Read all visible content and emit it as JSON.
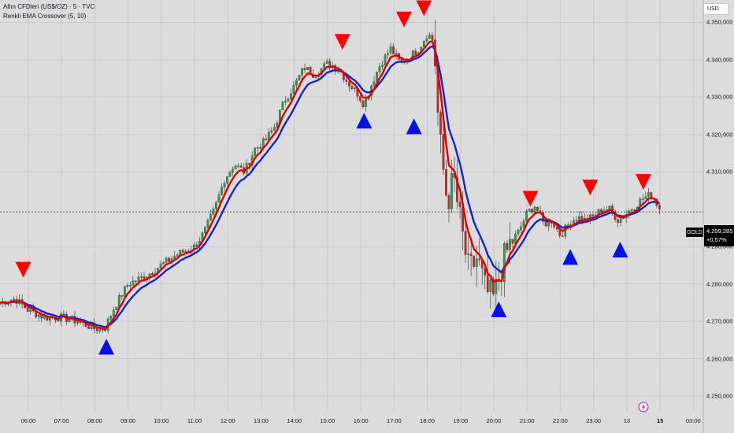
{
  "header": {
    "line1": "Altın CFDleri (US$/OZ) · 5 · TVC",
    "line2": "Renkli EMA Crossover (5, 10)"
  },
  "currency_button": "USD",
  "symbol_tag": "GOLD",
  "last_price": "4.299,285",
  "change_pct": "+0,57%",
  "event_icon": "lightning-icon",
  "colors": {
    "background": "#dcdcdc",
    "grid": "#c9c9c9",
    "up_candle": "#2e9e4e",
    "down_candle": "#c62828",
    "ema_fast": "#d90000",
    "ema_slow": "#1525c8",
    "buy_marker": "#0011e6",
    "sell_marker": "#ff0000"
  },
  "chart_data": {
    "type": "candlestick",
    "title": "Altın CFDleri (US$/OZ) · 5 · TVC",
    "indicator": "Renkli EMA Crossover (5, 10)",
    "y_ticks": [
      "4.350,000",
      "4.340,000",
      "4.330,000",
      "4.320,000",
      "4.310,000",
      "4.290,000",
      "4.280,000",
      "4.270,000",
      "4.260,000",
      "4.250,000"
    ],
    "y_tick_values": [
      4350,
      4340,
      4330,
      4320,
      4310,
      4290,
      4280,
      4270,
      4260,
      4250
    ],
    "ylim": [
      4246,
      4356
    ],
    "x_ticks": [
      "06:00",
      "07:00",
      "08:00",
      "09:00",
      "10:00",
      "11:00",
      "12:00",
      "13:00",
      "14:00",
      "15:00",
      "16:00",
      "17:00",
      "18:00",
      "19:00",
      "20:00",
      "21:00",
      "22:00",
      "23:00",
      "13",
      "15",
      "03:00"
    ],
    "x_tick_hours": [
      6,
      7,
      8,
      9,
      10,
      11,
      12,
      13,
      14,
      15,
      16,
      17,
      18,
      19,
      20,
      21,
      22,
      23,
      24,
      25,
      26
    ],
    "x_tick_bold": [
      "15"
    ],
    "xlim_hours": [
      5.15,
      26.3
    ],
    "grid": true,
    "last_price": 4299.285,
    "close_path": [
      [
        5.15,
        4275
      ],
      [
        5.6,
        4276
      ],
      [
        6.0,
        4273
      ],
      [
        6.5,
        4271
      ],
      [
        7.0,
        4271
      ],
      [
        7.5,
        4270
      ],
      [
        8.0,
        4268
      ],
      [
        8.3,
        4268
      ],
      [
        8.6,
        4274
      ],
      [
        9.0,
        4280
      ],
      [
        9.5,
        4282
      ],
      [
        10.0,
        4285
      ],
      [
        10.5,
        4288
      ],
      [
        11.0,
        4290
      ],
      [
        11.3,
        4294
      ],
      [
        11.6,
        4300
      ],
      [
        11.9,
        4308
      ],
      [
        12.2,
        4312
      ],
      [
        12.5,
        4310
      ],
      [
        12.8,
        4316
      ],
      [
        13.1,
        4318
      ],
      [
        13.4,
        4322
      ],
      [
        13.7,
        4329
      ],
      [
        14.0,
        4333
      ],
      [
        14.3,
        4338
      ],
      [
        14.6,
        4336
      ],
      [
        15.0,
        4339
      ],
      [
        15.3,
        4338
      ],
      [
        15.6,
        4334
      ],
      [
        15.9,
        4331
      ],
      [
        16.1,
        4328
      ],
      [
        16.35,
        4334
      ],
      [
        16.6,
        4339
      ],
      [
        16.9,
        4343
      ],
      [
        17.2,
        4339
      ],
      [
        17.5,
        4341
      ],
      [
        17.75,
        4343
      ],
      [
        18.0,
        4347
      ],
      [
        18.2,
        4345
      ],
      [
        18.35,
        4320
      ],
      [
        18.6,
        4302
      ],
      [
        18.8,
        4308
      ],
      [
        19.0,
        4296
      ],
      [
        19.25,
        4283
      ],
      [
        19.5,
        4287
      ],
      [
        19.75,
        4278
      ],
      [
        20.0,
        4276
      ],
      [
        20.25,
        4285
      ],
      [
        20.5,
        4291
      ],
      [
        20.75,
        4294
      ],
      [
        21.0,
        4299
      ],
      [
        21.25,
        4301
      ],
      [
        21.5,
        4296
      ],
      [
        21.75,
        4297
      ],
      [
        22.0,
        4293
      ],
      [
        22.25,
        4296
      ],
      [
        22.5,
        4298
      ],
      [
        22.75,
        4297
      ],
      [
        23.0,
        4298
      ],
      [
        23.25,
        4300
      ],
      [
        23.5,
        4300
      ],
      [
        23.75,
        4297
      ],
      [
        24.0,
        4299
      ],
      [
        24.25,
        4301
      ],
      [
        24.5,
        4303
      ],
      [
        24.75,
        4304
      ],
      [
        25.0,
        4300
      ]
    ],
    "buy_signals": [
      {
        "x": 8.35,
        "y": 4263
      },
      {
        "x": 16.1,
        "y": 4323.5
      },
      {
        "x": 17.6,
        "y": 4322
      },
      {
        "x": 20.15,
        "y": 4273
      },
      {
        "x": 22.3,
        "y": 4287
      },
      {
        "x": 23.8,
        "y": 4289
      }
    ],
    "sell_signals": [
      {
        "x": 5.85,
        "y": 4284
      },
      {
        "x": 15.45,
        "y": 4345
      },
      {
        "x": 17.3,
        "y": 4351
      },
      {
        "x": 17.9,
        "y": 4354
      },
      {
        "x": 21.1,
        "y": 4303
      },
      {
        "x": 22.9,
        "y": 4306
      },
      {
        "x": 24.5,
        "y": 4307.5
      }
    ]
  }
}
